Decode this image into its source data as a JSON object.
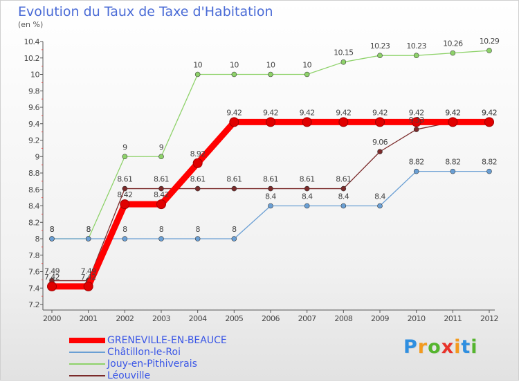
{
  "chart_data": {
    "type": "line",
    "title": "Evolution du Taux de Taxe d'Habitation",
    "subtitle": "(en %)",
    "xlabel": "",
    "ylabel": "",
    "categories": [
      "2000",
      "2001",
      "2002",
      "2003",
      "2004",
      "2005",
      "2006",
      "2007",
      "2008",
      "2009",
      "2010",
      "2011",
      "2012"
    ],
    "ylim": [
      7.2,
      10.4
    ],
    "yticks": [
      "7.2",
      "7.4",
      "7.6",
      "7.8",
      "8",
      "8.2",
      "8.4",
      "8.6",
      "8.8",
      "9",
      "9.2",
      "9.4",
      "9.6",
      "9.8",
      "10",
      "10.2",
      "10.4"
    ],
    "grid": false,
    "legend_position": "bottom",
    "series": [
      {
        "name": "GRENEVILLE-EN-BEAUCE",
        "color": "#ff0000",
        "values": [
          7.42,
          7.42,
          8.42,
          8.42,
          8.92,
          9.42,
          9.42,
          9.42,
          9.42,
          9.42,
          9.42,
          9.42,
          9.42
        ],
        "labels": [
          "7.42",
          "7.42",
          "8.42",
          "8.42",
          "8.92",
          "9.42",
          "9.42",
          "9.42",
          "9.42",
          "9.42",
          "9.42",
          "9.42",
          "9.42"
        ]
      },
      {
        "name": "Châtillon-le-Roi",
        "color": "#6a9fd4",
        "values": [
          8,
          8,
          8,
          8,
          8,
          8,
          8.4,
          8.4,
          8.4,
          8.4,
          8.82,
          8.82,
          8.82
        ],
        "labels": [
          "8",
          "8",
          "8",
          "8",
          "8",
          "8",
          "8.4",
          "8.4",
          "8.4",
          "8.4",
          "8.82",
          "8.82",
          "8.82"
        ]
      },
      {
        "name": "Jouy-en-Pithiverais",
        "color": "#8ed26a",
        "values": [
          8,
          8,
          9,
          9,
          10,
          10,
          10,
          10,
          10.15,
          10.23,
          10.23,
          10.26,
          10.29
        ],
        "labels": [
          "8",
          "8",
          "9",
          "9",
          "10",
          "10",
          "10",
          "10",
          "10.15",
          "10.23",
          "10.23",
          "10.26",
          "10.29"
        ]
      },
      {
        "name": "Léouville",
        "color": "#7b2a2a",
        "values": [
          7.49,
          7.49,
          8.61,
          8.61,
          8.61,
          8.61,
          8.61,
          8.61,
          8.61,
          9.06,
          9.33,
          9.42,
          9.42
        ],
        "labels": [
          "7.49",
          "7.49",
          "8.61",
          "8.61",
          "8.61",
          "8.61",
          "8.61",
          "8.61",
          "8.61",
          "9.06",
          "9.33",
          "9.42",
          "9.42"
        ]
      }
    ]
  },
  "legend": {
    "items": [
      {
        "label": "GRENEVILLE-EN-BEAUCE",
        "color": "#ff0000"
      },
      {
        "label": "Châtillon-le-Roi",
        "color": "#6a9fd4"
      },
      {
        "label": "Jouy-en-Pithiverais",
        "color": "#8ed26a"
      },
      {
        "label": "Léouville",
        "color": "#7b2a2a"
      }
    ]
  },
  "logo": {
    "letters": [
      "P",
      "r",
      "o",
      "x",
      "i",
      "t",
      "i"
    ],
    "colors": [
      "#2f8fe0",
      "#f39a1e",
      "#55b52e",
      "#e8322a",
      "#f39a1e",
      "#2f8fe0",
      "#55b52e"
    ]
  }
}
